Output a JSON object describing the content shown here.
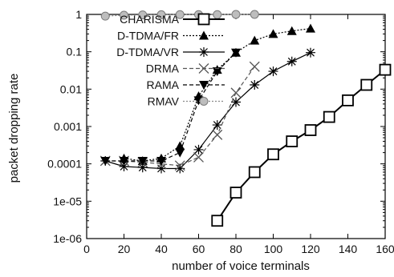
{
  "chart_data": {
    "type": "line",
    "title": "",
    "xlabel": "number of voice terminals",
    "ylabel": "packet dropping rate",
    "x_scale": "linear",
    "y_scale": "log",
    "xlim": [
      0,
      160
    ],
    "ylim": [
      1e-06,
      1
    ],
    "x_ticks": [
      0,
      20,
      40,
      60,
      80,
      100,
      120,
      140,
      160
    ],
    "x_tick_labels": [
      "0",
      "20",
      "40",
      "60",
      "80",
      "100",
      "120",
      "140",
      "160"
    ],
    "y_ticks": [
      1e-06,
      1e-05,
      0.0001,
      0.001,
      0.01,
      0.1,
      1
    ],
    "y_tick_labels": [
      "1e-06",
      "1e-05",
      "0.0001",
      "0.001",
      "0.01",
      "0.1",
      "1"
    ],
    "grid": false,
    "legend_position": "top-left",
    "series": [
      {
        "name": "CHARISMA",
        "marker": "open-square",
        "line_style": "solid",
        "line_weight": "thick",
        "color": "#000000",
        "x": [
          70,
          80,
          90,
          100,
          110,
          120,
          130,
          140,
          150,
          160
        ],
        "y": [
          3e-06,
          1.7e-05,
          6e-05,
          0.00018,
          0.0004,
          0.0008,
          0.0018,
          0.005,
          0.013,
          0.033
        ]
      },
      {
        "name": "D-TDMA/FR",
        "marker": "filled-triangle",
        "line_style": "dotted",
        "color": "#000000",
        "x": [
          20,
          30,
          40,
          50,
          60,
          70,
          80,
          90,
          100,
          110,
          120
        ],
        "y": [
          0.00014,
          0.00012,
          0.00014,
          0.0003,
          0.0065,
          0.033,
          0.095,
          0.2,
          0.3,
          0.36,
          0.42
        ]
      },
      {
        "name": "D-TDMA/VR",
        "marker": "asterisk",
        "line_style": "solid",
        "color": "#000000",
        "x": [
          10,
          20,
          30,
          40,
          50,
          60,
          70,
          80,
          90,
          100,
          110,
          120
        ],
        "y": [
          0.00012,
          8.5e-05,
          8e-05,
          7.5e-05,
          7.5e-05,
          0.00024,
          0.0011,
          0.0045,
          0.013,
          0.03,
          0.055,
          0.095
        ]
      },
      {
        "name": "DRMA",
        "marker": "cross",
        "line_style": "dashed",
        "color": "#555555",
        "x": [
          10,
          20,
          30,
          40,
          50,
          60,
          70,
          80,
          90
        ],
        "y": [
          0.00012,
          0.00012,
          0.00011,
          0.0001,
          9e-05,
          0.00015,
          0.0006,
          0.008,
          0.04
        ]
      },
      {
        "name": "RAMA",
        "marker": "filled-inverted-triangle",
        "line_style": "dashed",
        "color": "#000000",
        "x": [
          10,
          20,
          30,
          40,
          50,
          60,
          70,
          80
        ],
        "y": [
          0.00012,
          0.00012,
          0.00012,
          0.00012,
          0.0002,
          0.005,
          0.03,
          0.095
        ]
      },
      {
        "name": "RMAV",
        "marker": "gray-circle",
        "line_style": "dotted",
        "color": "#8a8a8a",
        "x": [
          10,
          20,
          30,
          40,
          50,
          60,
          70,
          80,
          90
        ],
        "y": [
          0.9,
          0.95,
          0.97,
          0.98,
          0.99,
          0.99,
          0.99,
          1.0,
          1.0
        ]
      }
    ]
  }
}
